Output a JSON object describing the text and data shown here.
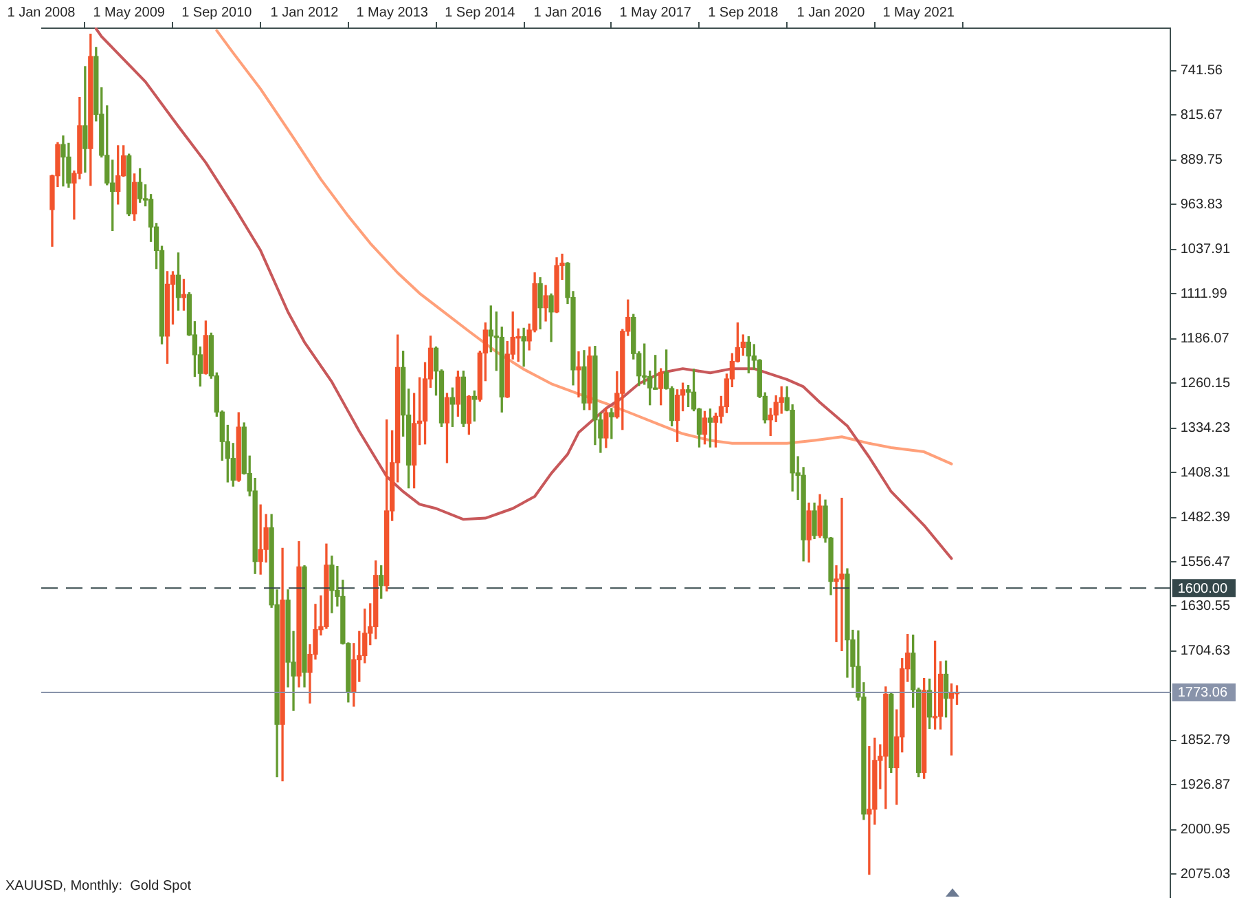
{
  "chart_data": {
    "type": "candlestick",
    "title": "XAUUSD, Monthly:  Gold Spot",
    "x": [
      "2008-03",
      "2008-04",
      "2008-05",
      "2008-06",
      "2008-07",
      "2008-08",
      "2008-09",
      "2008-10",
      "2008-11",
      "2008-12",
      "2009-01",
      "2009-02",
      "2009-03",
      "2009-04",
      "2009-05",
      "2009-06",
      "2009-07",
      "2009-08",
      "2009-09",
      "2009-10",
      "2009-11",
      "2009-12",
      "2010-01",
      "2010-02",
      "2010-03",
      "2010-04",
      "2010-05",
      "2010-06",
      "2010-07",
      "2010-08",
      "2010-09",
      "2010-10",
      "2010-11",
      "2010-12",
      "2011-01",
      "2011-02",
      "2011-03",
      "2011-04",
      "2011-05",
      "2011-06",
      "2011-07",
      "2011-08",
      "2011-09",
      "2011-10",
      "2011-11",
      "2011-12",
      "2012-01",
      "2012-02",
      "2012-03",
      "2012-04",
      "2012-05",
      "2012-06",
      "2012-07",
      "2012-08",
      "2012-09",
      "2012-10",
      "2012-11",
      "2012-12",
      "2013-01",
      "2013-02",
      "2013-03",
      "2013-04",
      "2013-05",
      "2013-06",
      "2013-07",
      "2013-08",
      "2013-09",
      "2013-10",
      "2013-11",
      "2013-12",
      "2014-01",
      "2014-02",
      "2014-03",
      "2014-04",
      "2014-05",
      "2014-06",
      "2014-07",
      "2014-08",
      "2014-09",
      "2014-10",
      "2014-11",
      "2014-12",
      "2015-01",
      "2015-02",
      "2015-03",
      "2015-04",
      "2015-05",
      "2015-06",
      "2015-07",
      "2015-08",
      "2015-09",
      "2015-10",
      "2015-11",
      "2015-12",
      "2016-01",
      "2016-02",
      "2016-03",
      "2016-04",
      "2016-05",
      "2016-06",
      "2016-07",
      "2016-08",
      "2016-09",
      "2016-10",
      "2016-11",
      "2016-12",
      "2017-01",
      "2017-02",
      "2017-03",
      "2017-04",
      "2017-05",
      "2017-06",
      "2017-07",
      "2017-08",
      "2017-09",
      "2017-10",
      "2017-11",
      "2017-12",
      "2018-01",
      "2018-02",
      "2018-03",
      "2018-04",
      "2018-05",
      "2018-06",
      "2018-07",
      "2018-08",
      "2018-09",
      "2018-10",
      "2018-11",
      "2018-12",
      "2019-01",
      "2019-02",
      "2019-03",
      "2019-04",
      "2019-05",
      "2019-06",
      "2019-07",
      "2019-08",
      "2019-09",
      "2019-10",
      "2019-11",
      "2019-12",
      "2020-01",
      "2020-02",
      "2020-03",
      "2020-04",
      "2020-05",
      "2020-06",
      "2020-07",
      "2020-08",
      "2020-09",
      "2020-10",
      "2020-11",
      "2020-12",
      "2021-01",
      "2021-02",
      "2021-03",
      "2021-04",
      "2021-05",
      "2021-06",
      "2021-07",
      "2021-08",
      "2021-09",
      "2021-10",
      "2021-11",
      "2021-12"
    ],
    "ohlc": [
      [
        972,
        1033,
        915,
        916
      ],
      [
        916,
        934,
        861,
        864
      ],
      [
        864,
        933,
        850,
        885
      ],
      [
        885,
        935,
        862,
        928
      ],
      [
        928,
        988,
        908,
        912
      ],
      [
        912,
        921,
        786,
        833
      ],
      [
        833,
        910,
        735,
        871
      ],
      [
        871,
        932,
        681,
        718
      ],
      [
        718,
        825,
        703,
        814
      ],
      [
        814,
        885,
        770,
        882
      ],
      [
        882,
        931,
        800,
        928
      ],
      [
        928,
        1007,
        890,
        942
      ],
      [
        942,
        963,
        866,
        916
      ],
      [
        916,
        917,
        866,
        883
      ],
      [
        883,
        982,
        880,
        979
      ],
      [
        979,
        990,
        913,
        927
      ],
      [
        927,
        960,
        904,
        954
      ],
      [
        954,
        966,
        931,
        955
      ],
      [
        955,
        1025,
        947,
        1001
      ],
      [
        1001,
        1070,
        995,
        1040
      ],
      [
        1040,
        1195,
        1033,
        1182
      ],
      [
        1182,
        1227,
        1075,
        1096
      ],
      [
        1096,
        1162,
        1075,
        1081
      ],
      [
        1081,
        1139,
        1044,
        1118
      ],
      [
        1118,
        1139,
        1088,
        1113
      ],
      [
        1113,
        1181,
        1110,
        1180
      ],
      [
        1180,
        1249,
        1158,
        1213
      ],
      [
        1213,
        1265,
        1200,
        1244
      ],
      [
        1244,
        1245,
        1157,
        1181
      ],
      [
        1181,
        1252,
        1177,
        1248
      ],
      [
        1248,
        1315,
        1243,
        1308
      ],
      [
        1308,
        1388,
        1306,
        1357
      ],
      [
        1357,
        1424,
        1330,
        1385
      ],
      [
        1385,
        1431,
        1360,
        1421
      ],
      [
        1421,
        1423,
        1309,
        1333
      ],
      [
        1333,
        1411,
        1326,
        1410
      ],
      [
        1410,
        1447,
        1381,
        1439
      ],
      [
        1439,
        1576,
        1418,
        1556
      ],
      [
        1556,
        1577,
        1462,
        1536
      ],
      [
        1536,
        1557,
        1478,
        1500
      ],
      [
        1500,
        1632,
        1478,
        1628
      ],
      [
        1628,
        1913,
        1603,
        1826
      ],
      [
        1826,
        1920,
        1534,
        1620
      ],
      [
        1620,
        1764,
        1603,
        1723
      ],
      [
        1723,
        1803,
        1672,
        1746
      ],
      [
        1746,
        1764,
        1523,
        1565
      ],
      [
        1565,
        1764,
        1563,
        1740
      ],
      [
        1740,
        1791,
        1694,
        1710
      ],
      [
        1710,
        1718,
        1627,
        1669
      ],
      [
        1669,
        1678,
        1613,
        1664
      ],
      [
        1664,
        1667,
        1527,
        1562
      ],
      [
        1562,
        1641,
        1547,
        1604
      ],
      [
        1604,
        1630,
        1564,
        1614
      ],
      [
        1614,
        1693,
        1587,
        1692
      ],
      [
        1692,
        1789,
        1691,
        1772
      ],
      [
        1772,
        1796,
        1692,
        1719
      ],
      [
        1719,
        1755,
        1672,
        1712
      ],
      [
        1712,
        1724,
        1635,
        1675
      ],
      [
        1675,
        1694,
        1626,
        1664
      ],
      [
        1664,
        1684,
        1555,
        1579
      ],
      [
        1579,
        1617,
        1563,
        1596
      ],
      [
        1596,
        1605,
        1321,
        1472
      ],
      [
        1472,
        1488,
        1339,
        1392
      ],
      [
        1392,
        1424,
        1180,
        1234
      ],
      [
        1234,
        1348,
        1207,
        1313
      ],
      [
        1313,
        1434,
        1270,
        1396
      ],
      [
        1396,
        1434,
        1277,
        1327
      ],
      [
        1327,
        1362,
        1251,
        1323
      ],
      [
        1323,
        1361,
        1226,
        1253
      ],
      [
        1253,
        1267,
        1182,
        1202
      ],
      [
        1202,
        1280,
        1200,
        1240
      ],
      [
        1240,
        1332,
        1238,
        1326
      ],
      [
        1326,
        1392,
        1277,
        1284
      ],
      [
        1284,
        1332,
        1268,
        1295
      ],
      [
        1295,
        1315,
        1240,
        1250
      ],
      [
        1250,
        1332,
        1240,
        1327
      ],
      [
        1327,
        1345,
        1281,
        1282
      ],
      [
        1282,
        1323,
        1273,
        1287
      ],
      [
        1287,
        1290,
        1207,
        1210
      ],
      [
        1210,
        1256,
        1160,
        1172
      ],
      [
        1172,
        1208,
        1132,
        1182
      ],
      [
        1182,
        1239,
        1142,
        1184
      ],
      [
        1184,
        1308,
        1167,
        1283
      ],
      [
        1283,
        1284,
        1191,
        1212
      ],
      [
        1212,
        1220,
        1142,
        1184
      ],
      [
        1184,
        1224,
        1170,
        1183
      ],
      [
        1183,
        1232,
        1169,
        1190
      ],
      [
        1190,
        1205,
        1162,
        1172
      ],
      [
        1172,
        1175,
        1077,
        1095
      ],
      [
        1095,
        1170,
        1085,
        1135
      ],
      [
        1135,
        1157,
        1098,
        1115
      ],
      [
        1115,
        1191,
        1112,
        1142
      ],
      [
        1142,
        1143,
        1052,
        1065
      ],
      [
        1065,
        1088,
        1046,
        1061
      ],
      [
        1061,
        1128,
        1060,
        1118
      ],
      [
        1118,
        1263,
        1108,
        1238
      ],
      [
        1238,
        1283,
        1208,
        1233
      ],
      [
        1233,
        1304,
        1206,
        1293
      ],
      [
        1293,
        1304,
        1200,
        1215
      ],
      [
        1215,
        1362,
        1199,
        1321
      ],
      [
        1321,
        1375,
        1310,
        1351
      ],
      [
        1351,
        1367,
        1302,
        1309
      ],
      [
        1309,
        1352,
        1302,
        1316
      ],
      [
        1316,
        1318,
        1241,
        1277
      ],
      [
        1277,
        1337,
        1171,
        1174
      ],
      [
        1174,
        1181,
        1122,
        1151
      ],
      [
        1151,
        1220,
        1146,
        1211
      ],
      [
        1211,
        1264,
        1208,
        1248
      ],
      [
        1248,
        1262,
        1195,
        1249
      ],
      [
        1249,
        1296,
        1240,
        1268
      ],
      [
        1268,
        1270,
        1214,
        1269
      ],
      [
        1269,
        1296,
        1236,
        1242
      ],
      [
        1242,
        1270,
        1205,
        1269
      ],
      [
        1269,
        1331,
        1266,
        1322
      ],
      [
        1322,
        1357,
        1271,
        1280
      ],
      [
        1280,
        1306,
        1260,
        1271
      ],
      [
        1271,
        1299,
        1264,
        1275
      ],
      [
        1275,
        1306,
        1237,
        1303
      ],
      [
        1303,
        1366,
        1302,
        1345
      ],
      [
        1345,
        1361,
        1307,
        1318
      ],
      [
        1318,
        1366,
        1303,
        1325
      ],
      [
        1325,
        1366,
        1310,
        1315
      ],
      [
        1315,
        1326,
        1282,
        1299
      ],
      [
        1299,
        1309,
        1245,
        1253
      ],
      [
        1253,
        1266,
        1211,
        1224
      ],
      [
        1224,
        1225,
        1160,
        1201
      ],
      [
        1201,
        1214,
        1180,
        1192
      ],
      [
        1192,
        1243,
        1183,
        1215
      ],
      [
        1215,
        1237,
        1196,
        1222
      ],
      [
        1222,
        1284,
        1221,
        1282
      ],
      [
        1282,
        1326,
        1276,
        1321
      ],
      [
        1321,
        1347,
        1302,
        1313
      ],
      [
        1313,
        1324,
        1281,
        1292
      ],
      [
        1292,
        1310,
        1266,
        1284
      ],
      [
        1284,
        1306,
        1266,
        1305
      ],
      [
        1305,
        1439,
        1296,
        1409
      ],
      [
        1409,
        1453,
        1382,
        1413
      ],
      [
        1413,
        1555,
        1400,
        1520
      ],
      [
        1520,
        1557,
        1459,
        1472
      ],
      [
        1472,
        1518,
        1459,
        1513
      ],
      [
        1513,
        1516,
        1445,
        1464
      ],
      [
        1464,
        1524,
        1454,
        1517
      ],
      [
        1517,
        1611,
        1516,
        1589
      ],
      [
        1589,
        1689,
        1563,
        1585
      ],
      [
        1585,
        1704,
        1451,
        1577
      ],
      [
        1577,
        1748,
        1568,
        1686
      ],
      [
        1686,
        1765,
        1670,
        1730
      ],
      [
        1730,
        1786,
        1671,
        1781
      ],
      [
        1781,
        1984,
        1757,
        1975
      ],
      [
        1975,
        2075,
        1863,
        1967
      ],
      [
        1967,
        1992,
        1849,
        1886
      ],
      [
        1886,
        1933,
        1860,
        1879
      ],
      [
        1879,
        1966,
        1764,
        1776
      ],
      [
        1776,
        1906,
        1775,
        1898
      ],
      [
        1898,
        1959,
        1802,
        1847
      ],
      [
        1847,
        1872,
        1717,
        1734
      ],
      [
        1734,
        1755,
        1677,
        1708
      ],
      [
        1708,
        1798,
        1678,
        1769
      ],
      [
        1769,
        1913,
        1766,
        1906
      ],
      [
        1906,
        1916,
        1750,
        1770
      ],
      [
        1770,
        1833,
        1751,
        1814
      ],
      [
        1814,
        1834,
        1688,
        1813
      ],
      [
        1813,
        1834,
        1722,
        1743
      ],
      [
        1743,
        1814,
        1721,
        1783
      ],
      [
        1783,
        1877,
        1759,
        1774
      ],
      [
        1774,
        1793,
        1762,
        1773.06
      ]
    ],
    "colors": [
      "#f2542d",
      "#f2542d",
      "#639a2f",
      "#639a2f",
      "#f2542d",
      "#f2542d",
      "#639a2f",
      "#f2542d",
      "#639a2f",
      "#639a2f",
      "#639a2f",
      "#639a2f",
      "#f2542d",
      "#f2542d",
      "#639a2f",
      "#f2542d",
      "#639a2f",
      "#639a2f",
      "#639a2f",
      "#639a2f",
      "#639a2f",
      "#f2542d",
      "#f2542d",
      "#639a2f",
      "#f2542d",
      "#639a2f",
      "#639a2f",
      "#639a2f",
      "#f2542d",
      "#639a2f",
      "#639a2f",
      "#639a2f",
      "#639a2f",
      "#639a2f",
      "#f2542d",
      "#639a2f",
      "#639a2f",
      "#639a2f",
      "#f2542d",
      "#f2542d",
      "#639a2f",
      "#639a2f",
      "#f2542d",
      "#639a2f",
      "#639a2f",
      "#f2542d",
      "#639a2f",
      "#f2542d",
      "#f2542d",
      "#f2542d",
      "#f2542d",
      "#639a2f",
      "#639a2f",
      "#639a2f",
      "#639a2f",
      "#f2542d",
      "#f2542d",
      "#f2542d",
      "#f2542d",
      "#f2542d",
      "#639a2f",
      "#f2542d",
      "#f2542d",
      "#f2542d",
      "#639a2f",
      "#639a2f",
      "#f2542d",
      "#f2542d",
      "#f2542d",
      "#f2542d",
      "#639a2f",
      "#639a2f",
      "#f2542d",
      "#639a2f",
      "#f2542d",
      "#639a2f",
      "#f2542d",
      "#639a2f",
      "#f2542d",
      "#f2542d",
      "#639a2f",
      "#639a2f",
      "#639a2f",
      "#f2542d",
      "#f2542d",
      "#f2542d",
      "#639a2f",
      "#f2542d",
      "#f2542d",
      "#639a2f",
      "#f2542d",
      "#639a2f",
      "#f2542d",
      "#f2542d",
      "#639a2f",
      "#639a2f",
      "#f2542d",
      "#639a2f",
      "#f2542d",
      "#639a2f",
      "#639a2f",
      "#f2542d",
      "#639a2f",
      "#f2542d",
      "#f2542d",
      "#f2542d",
      "#639a2f",
      "#639a2f",
      "#639a2f",
      "#639a2f",
      "#639a2f",
      "#f2542d",
      "#639a2f",
      "#639a2f",
      "#f2542d",
      "#f2542d",
      "#639a2f",
      "#639a2f",
      "#639a2f",
      "#f2542d",
      "#639a2f",
      "#f2542d",
      "#f2542d",
      "#f2542d",
      "#f2542d",
      "#f2542d",
      "#f2542d",
      "#639a2f",
      "#639a2f",
      "#639a2f",
      "#639a2f",
      "#f2542d",
      "#f2542d",
      "#f2542d",
      "#639a2f",
      "#639a2f",
      "#639a2f",
      "#639a2f",
      "#f2542d",
      "#639a2f",
      "#f2542d",
      "#639a2f",
      "#639a2f",
      "#f2542d",
      "#f2542d",
      "#639a2f",
      "#639a2f",
      "#639a2f",
      "#639a2f",
      "#f2542d",
      "#f2542d",
      "#f2542d",
      "#f2542d",
      "#639a2f",
      "#f2542d",
      "#f2542d",
      "#f2542d",
      "#639a2f",
      "#639a2f",
      "#f2542d",
      "#639a2f",
      "#f2542d",
      "#f2542d",
      "#639a2f",
      "#f2542d",
      "#f2542d"
    ],
    "series": [
      {
        "type": "line",
        "color": "#c8585a",
        "x": [
          "2008-11",
          "2008-12",
          "2009-08",
          "2010-02",
          "2010-07",
          "2010-12",
          "2011-05",
          "2011-10",
          "2012-01",
          "2012-06",
          "2012-11",
          "2013-04",
          "2013-07",
          "2013-10",
          "2014-01",
          "2014-06",
          "2014-10",
          "2015-03",
          "2015-07",
          "2015-10",
          "2016-01",
          "2016-03",
          "2016-08",
          "2016-11",
          "2017-02",
          "2017-06",
          "2017-10",
          "2018-03",
          "2018-07",
          "2018-11",
          "2019-03",
          "2019-05",
          "2019-08",
          "2019-11",
          "2020-04",
          "2020-08",
          "2020-12",
          "2021-06",
          "2021-11"
        ],
        "values": [
          672,
          685,
          760,
          834,
          894,
          965,
          1040,
          1142,
          1192,
          1258,
          1340,
          1415,
          1440,
          1461,
          1468,
          1486,
          1484,
          1468,
          1448,
          1410,
          1378,
          1342,
          1302,
          1284,
          1261,
          1243,
          1236,
          1243,
          1236,
          1236,
          1248,
          1254,
          1266,
          1292,
          1331,
          1383,
          1440,
          1496,
          1551
        ]
      },
      {
        "type": "line",
        "color": "#ffa07a",
        "x": [
          "2010-09",
          "2010-12",
          "2011-05",
          "2011-11",
          "2012-04",
          "2012-09",
          "2013-01",
          "2013-06",
          "2013-10",
          "2014-02",
          "2014-07",
          "2014-12",
          "2015-05",
          "2015-10",
          "2016-03",
          "2016-08",
          "2016-12",
          "2017-05",
          "2017-10",
          "2018-03",
          "2018-07",
          "2019-01",
          "2019-05",
          "2019-10",
          "2020-03",
          "2020-08",
          "2020-12",
          "2021-06",
          "2021-11"
        ],
        "values": [
          675,
          712,
          772,
          853,
          922,
          983,
          1028,
          1077,
          1111,
          1139,
          1174,
          1208,
          1237,
          1261,
          1278,
          1294,
          1308,
          1326,
          1344,
          1355,
          1360,
          1360,
          1360,
          1355,
          1349,
          1360,
          1367,
          1374,
          1394
        ]
      }
    ],
    "xlim": [
      "2008-01",
      "2025-03"
    ],
    "xticks": [
      {
        "value": "2008-01",
        "label": "1 Jan 2008"
      },
      {
        "value": "2009-05",
        "label": "1 May 2009"
      },
      {
        "value": "2010-09",
        "label": "1 Sep 2010"
      },
      {
        "value": "2012-01",
        "label": "1 Jan 2012"
      },
      {
        "value": "2013-05",
        "label": "1 May 2013"
      },
      {
        "value": "2014-09",
        "label": "1 Sep 2014"
      },
      {
        "value": "2016-01",
        "label": "1 Jan 2016"
      },
      {
        "value": "2017-05",
        "label": "1 May 2017"
      },
      {
        "value": "2018-09",
        "label": "1 Sep 2018"
      },
      {
        "value": "2020-01",
        "label": "1 Jan 2020"
      },
      {
        "value": "2021-05",
        "label": "1 May 2021"
      }
    ],
    "ylim": [
      2112,
      670
    ],
    "yticks": [
      741.56,
      815.67,
      889.75,
      963.83,
      1037.91,
      1111.99,
      1186.07,
      1260.15,
      1334.23,
      1408.31,
      1482.39,
      1556.47,
      1630.55,
      1704.63,
      1852.79,
      1926.87,
      2000.95,
      2075.03
    ],
    "ref_lines": [
      {
        "axis": "y",
        "value": 1600,
        "label": "1600.00",
        "color": "#34474a",
        "line_style": "dashed"
      },
      {
        "axis": "y",
        "value": 1773.06,
        "label": "1773.06",
        "color": "#8893aa",
        "line_style": "solid"
      }
    ]
  }
}
